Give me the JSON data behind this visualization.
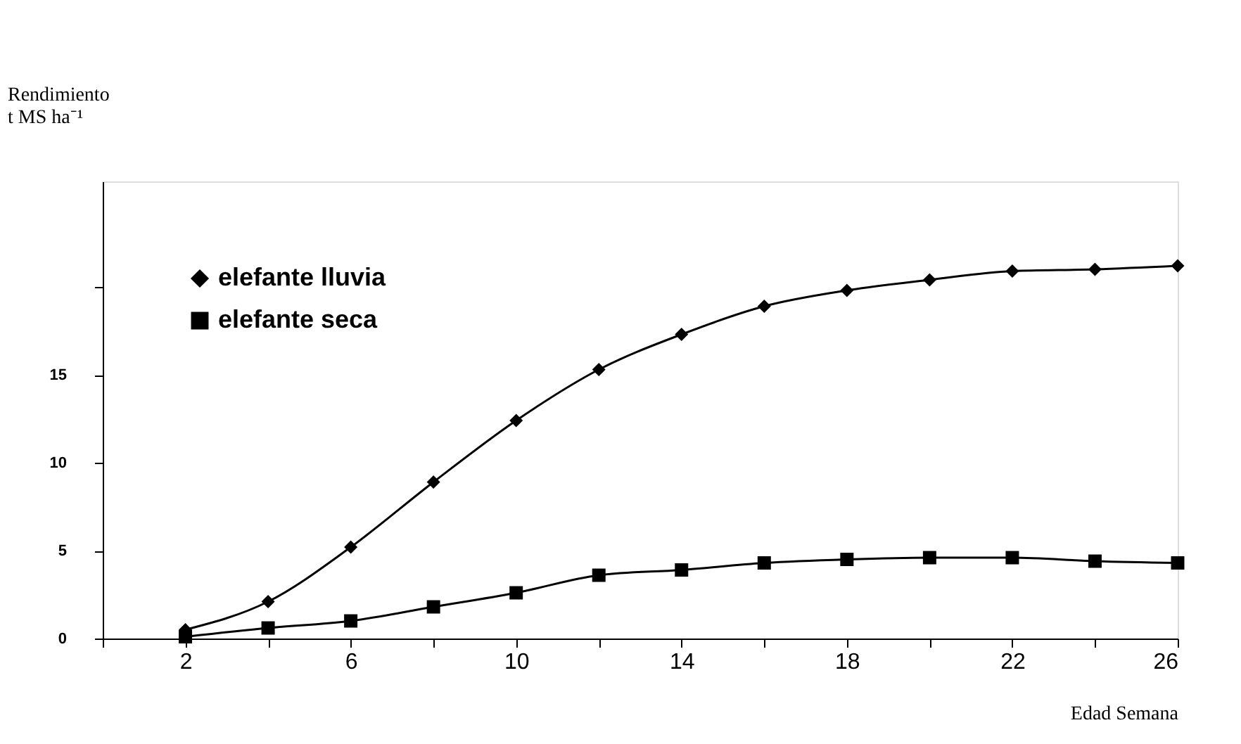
{
  "chart_data": {
    "type": "line",
    "ylabel": "Rendimiento t MS ha⁻¹",
    "xlabel": "Edad Semana",
    "x": [
      2,
      4,
      6,
      8,
      10,
      12,
      14,
      16,
      18,
      20,
      22,
      24,
      26
    ],
    "series": [
      {
        "name": "elefante lluvia",
        "color": "#000000",
        "marker": "diamond",
        "values": [
          0.5,
          2.1,
          5.2,
          8.9,
          12.4,
          15.3,
          17.3,
          18.9,
          19.8,
          20.4,
          20.9,
          21.0,
          21.2
        ]
      },
      {
        "name": "elefante seca",
        "color": "#000000",
        "marker": "square",
        "values": [
          0.1,
          0.6,
          1.0,
          1.8,
          2.6,
          3.6,
          3.9,
          4.3,
          4.5,
          4.6,
          4.6,
          4.4,
          4.3
        ]
      }
    ],
    "xlim": [
      0,
      26
    ],
    "xticks": [
      {
        "value": 0,
        "label": null
      },
      2,
      {
        "value": 4,
        "label": null
      },
      6,
      {
        "value": 8,
        "label": null
      },
      10,
      {
        "value": 12,
        "label": null
      },
      14,
      {
        "value": 16,
        "label": null
      },
      18,
      {
        "value": 20,
        "label": null
      },
      22,
      {
        "value": 24,
        "label": null
      },
      26
    ],
    "ylim": [
      0,
      26
    ],
    "yticks": [
      0,
      5,
      10,
      15,
      {
        "value": 20,
        "label": null
      }
    ],
    "grid": false,
    "legend": "top left",
    "line_style": "solid"
  }
}
